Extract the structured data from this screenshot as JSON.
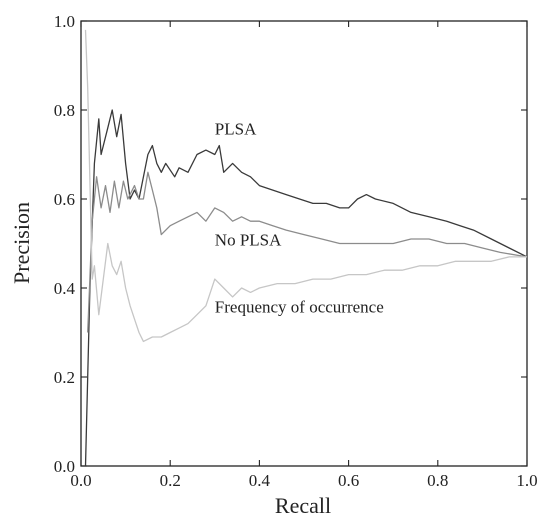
{
  "chart_data": {
    "type": "line",
    "title": "",
    "xlabel": "Recall",
    "ylabel": "Precision",
    "xlim": [
      0,
      1
    ],
    "ylim": [
      0,
      1
    ],
    "x_ticks": [
      "0.0",
      "0.2",
      "0.4",
      "0.6",
      "0.8",
      "1.0"
    ],
    "y_ticks": [
      "0.0",
      "0.2",
      "0.4",
      "0.6",
      "0.8",
      "1.0"
    ],
    "grid": false,
    "legend": "none (series labelled inline)",
    "series": [
      {
        "name": "PLSA",
        "color": "#3a3a3a",
        "points": [
          [
            0.01,
            0.0
          ],
          [
            0.02,
            0.4
          ],
          [
            0.03,
            0.68
          ],
          [
            0.04,
            0.78
          ],
          [
            0.045,
            0.7
          ],
          [
            0.06,
            0.76
          ],
          [
            0.07,
            0.8
          ],
          [
            0.08,
            0.74
          ],
          [
            0.09,
            0.79
          ],
          [
            0.1,
            0.68
          ],
          [
            0.11,
            0.6
          ],
          [
            0.12,
            0.62
          ],
          [
            0.13,
            0.6
          ],
          [
            0.15,
            0.7
          ],
          [
            0.16,
            0.72
          ],
          [
            0.17,
            0.68
          ],
          [
            0.18,
            0.66
          ],
          [
            0.19,
            0.68
          ],
          [
            0.21,
            0.65
          ],
          [
            0.22,
            0.67
          ],
          [
            0.24,
            0.66
          ],
          [
            0.26,
            0.7
          ],
          [
            0.28,
            0.71
          ],
          [
            0.3,
            0.7
          ],
          [
            0.31,
            0.72
          ],
          [
            0.32,
            0.66
          ],
          [
            0.34,
            0.68
          ],
          [
            0.36,
            0.66
          ],
          [
            0.38,
            0.65
          ],
          [
            0.4,
            0.63
          ],
          [
            0.43,
            0.62
          ],
          [
            0.46,
            0.61
          ],
          [
            0.49,
            0.6
          ],
          [
            0.52,
            0.59
          ],
          [
            0.55,
            0.59
          ],
          [
            0.58,
            0.58
          ],
          [
            0.6,
            0.58
          ],
          [
            0.62,
            0.6
          ],
          [
            0.64,
            0.61
          ],
          [
            0.66,
            0.6
          ],
          [
            0.7,
            0.59
          ],
          [
            0.74,
            0.57
          ],
          [
            0.78,
            0.56
          ],
          [
            0.82,
            0.55
          ],
          [
            0.85,
            0.54
          ],
          [
            0.88,
            0.53
          ],
          [
            0.92,
            0.51
          ],
          [
            0.96,
            0.49
          ],
          [
            1.0,
            0.47
          ]
        ]
      },
      {
        "name": "No PLSA",
        "color": "#8c8c8c",
        "points": [
          [
            0.015,
            0.3
          ],
          [
            0.025,
            0.55
          ],
          [
            0.035,
            0.65
          ],
          [
            0.045,
            0.58
          ],
          [
            0.055,
            0.63
          ],
          [
            0.065,
            0.57
          ],
          [
            0.075,
            0.64
          ],
          [
            0.085,
            0.58
          ],
          [
            0.095,
            0.64
          ],
          [
            0.105,
            0.6
          ],
          [
            0.12,
            0.63
          ],
          [
            0.13,
            0.6
          ],
          [
            0.14,
            0.6
          ],
          [
            0.15,
            0.66
          ],
          [
            0.16,
            0.62
          ],
          [
            0.17,
            0.58
          ],
          [
            0.18,
            0.52
          ],
          [
            0.2,
            0.54
          ],
          [
            0.22,
            0.55
          ],
          [
            0.24,
            0.56
          ],
          [
            0.26,
            0.57
          ],
          [
            0.28,
            0.55
          ],
          [
            0.3,
            0.58
          ],
          [
            0.32,
            0.57
          ],
          [
            0.34,
            0.55
          ],
          [
            0.36,
            0.56
          ],
          [
            0.38,
            0.55
          ],
          [
            0.4,
            0.55
          ],
          [
            0.43,
            0.54
          ],
          [
            0.46,
            0.53
          ],
          [
            0.5,
            0.52
          ],
          [
            0.54,
            0.51
          ],
          [
            0.58,
            0.5
          ],
          [
            0.62,
            0.5
          ],
          [
            0.66,
            0.5
          ],
          [
            0.7,
            0.5
          ],
          [
            0.74,
            0.51
          ],
          [
            0.78,
            0.51
          ],
          [
            0.82,
            0.5
          ],
          [
            0.86,
            0.5
          ],
          [
            0.9,
            0.49
          ],
          [
            0.94,
            0.48
          ],
          [
            1.0,
            0.47
          ]
        ]
      },
      {
        "name": "Frequency of occurrence",
        "color": "#c6c6c6",
        "points": [
          [
            0.01,
            0.98
          ],
          [
            0.015,
            0.85
          ],
          [
            0.025,
            0.42
          ],
          [
            0.03,
            0.45
          ],
          [
            0.04,
            0.34
          ],
          [
            0.05,
            0.42
          ],
          [
            0.06,
            0.5
          ],
          [
            0.07,
            0.45
          ],
          [
            0.08,
            0.43
          ],
          [
            0.09,
            0.46
          ],
          [
            0.1,
            0.4
          ],
          [
            0.11,
            0.36
          ],
          [
            0.12,
            0.33
          ],
          [
            0.13,
            0.3
          ],
          [
            0.14,
            0.28
          ],
          [
            0.16,
            0.29
          ],
          [
            0.18,
            0.29
          ],
          [
            0.2,
            0.3
          ],
          [
            0.22,
            0.31
          ],
          [
            0.24,
            0.32
          ],
          [
            0.26,
            0.34
          ],
          [
            0.28,
            0.36
          ],
          [
            0.3,
            0.42
          ],
          [
            0.32,
            0.4
          ],
          [
            0.34,
            0.38
          ],
          [
            0.36,
            0.4
          ],
          [
            0.38,
            0.39
          ],
          [
            0.4,
            0.4
          ],
          [
            0.44,
            0.41
          ],
          [
            0.48,
            0.41
          ],
          [
            0.52,
            0.42
          ],
          [
            0.56,
            0.42
          ],
          [
            0.6,
            0.43
          ],
          [
            0.64,
            0.43
          ],
          [
            0.68,
            0.44
          ],
          [
            0.72,
            0.44
          ],
          [
            0.76,
            0.45
          ],
          [
            0.8,
            0.45
          ],
          [
            0.84,
            0.46
          ],
          [
            0.88,
            0.46
          ],
          [
            0.92,
            0.46
          ],
          [
            0.96,
            0.47
          ],
          [
            1.0,
            0.47
          ]
        ]
      }
    ],
    "annotations": [
      {
        "text": "PLSA",
        "x": 0.3,
        "y": 0.745
      },
      {
        "text": "No PLSA",
        "x": 0.3,
        "y": 0.495
      },
      {
        "text": "Frequency of occurrence",
        "x": 0.3,
        "y": 0.345
      }
    ]
  }
}
